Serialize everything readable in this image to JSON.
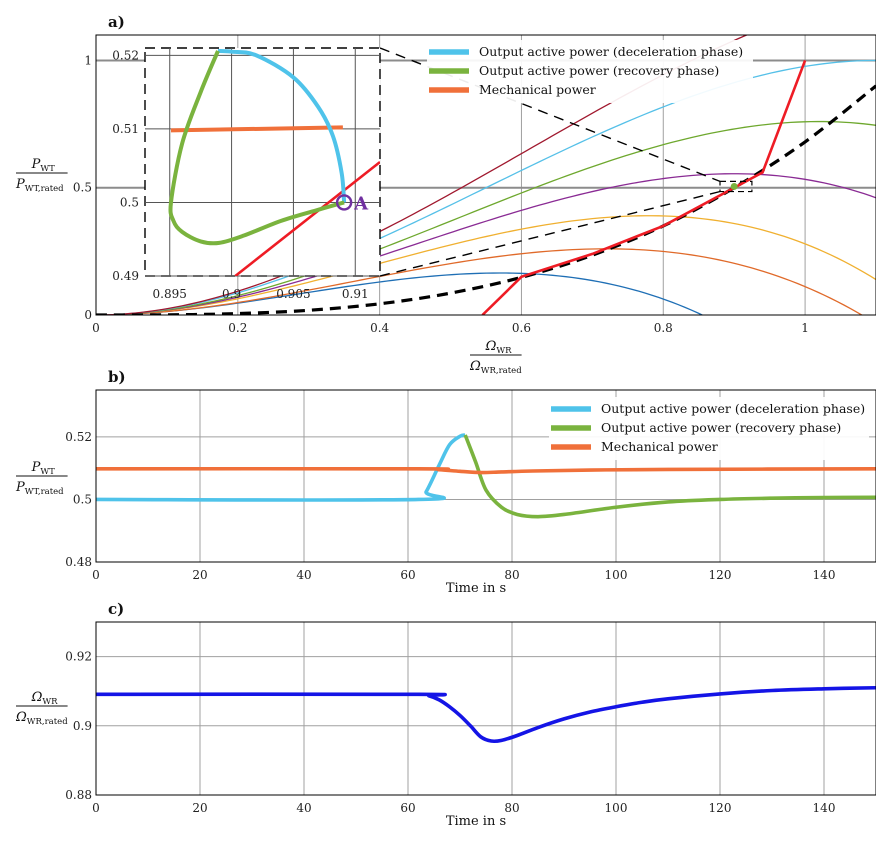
{
  "chart_data": [
    {
      "panel_label": "a)",
      "type": "line",
      "xlabel": {
        "num": "Ω",
        "num_sub": "WR",
        "den": "Ω",
        "den_sub": "WR,rated"
      },
      "ylabel": {
        "num": "P",
        "num_sub": "WT",
        "den": "P",
        "den_sub": "WT,rated"
      },
      "xlim": [
        0,
        1.1
      ],
      "ylim": [
        0,
        1.1
      ],
      "xticks": [
        0,
        0.2,
        0.4,
        0.6,
        0.8,
        1
      ],
      "xtick_labels": [
        "0",
        "0.2",
        "0.4",
        "0.6",
        "0.8",
        "1"
      ],
      "yticks": [
        0,
        0.5,
        1
      ],
      "ytick_labels": [
        "0",
        "0.5",
        "1"
      ],
      "grid": true,
      "legend_position": "top-right",
      "legend": [
        {
          "label": "Output active power (deceleration phase)",
          "color": "#4fc3ea"
        },
        {
          "label": "Output active power (recovery phase)",
          "color": "#7ab33e"
        },
        {
          "label": "Mechanical power",
          "color": "#f0703a"
        }
      ],
      "power_curve_peaks": [
        {
          "peak_x": 0.57,
          "peak_y": 0.165,
          "color": "#1f6fb5"
        },
        {
          "peak_x": 0.72,
          "peak_y": 0.26,
          "color": "#e06a2a"
        },
        {
          "peak_x": 0.78,
          "peak_y": 0.39,
          "color": "#f0b030"
        },
        {
          "peak_x": 0.9,
          "peak_y": 0.555,
          "color": "#8a2b94"
        },
        {
          "peak_x": 1.02,
          "peak_y": 0.76,
          "color": "#6ea82e"
        },
        {
          "peak_x": 1.1,
          "peak_y": 1.0,
          "color": "#55c0e8"
        },
        {
          "peak_x": 1.22,
          "peak_y": 1.3,
          "color": "#a0182e"
        }
      ],
      "mppt_curve": {
        "color": "#000000",
        "x": [
          0,
          0.1,
          0.2,
          0.3,
          0.4,
          0.5,
          0.6,
          0.7,
          0.8,
          0.9,
          1.0,
          1.1
        ],
        "y": [
          0,
          0.0007,
          0.0055,
          0.0185,
          0.044,
          0.086,
          0.148,
          0.235,
          0.35,
          0.5,
          0.68,
          0.9
        ]
      },
      "operating_limit": {
        "color": "#ee1c25",
        "x": [
          0.545,
          0.6,
          0.7,
          0.8,
          0.9,
          0.94,
          1.0
        ],
        "y": [
          0,
          0.15,
          0.24,
          0.35,
          0.5,
          0.56,
          1.0
        ]
      },
      "zoom_box": {
        "x": [
          0.88,
          0.925
        ],
        "y": [
          0.485,
          0.525
        ]
      },
      "marker": {
        "x": 0.9,
        "y": 0.505,
        "color": "#7ab33e"
      },
      "inset": {
        "xlim": [
          0.893,
          0.912
        ],
        "ylim": [
          0.49,
          0.521
        ],
        "xticks": [
          0.895,
          0.9,
          0.905,
          0.91
        ],
        "xtick_labels": [
          "0.895",
          "0.9",
          "0.905",
          "0.91"
        ],
        "yticks": [
          0.49,
          0.5,
          0.51,
          0.52
        ],
        "ytick_labels": [
          "0.49",
          "0.5",
          "0.51",
          "0.52"
        ],
        "point_label": "A",
        "point_A": {
          "x": 0.9091,
          "y": 0.5
        },
        "deceleration_curve": {
          "color": "#4fc3ea",
          "x": [
            0.9091,
            0.9089,
            0.9082,
            0.907,
            0.905,
            0.902,
            0.9,
            0.8989
          ],
          "y": [
            0.5,
            0.504,
            0.509,
            0.513,
            0.517,
            0.52,
            0.5205,
            0.5206
          ]
        },
        "recovery_curve": {
          "color": "#7ab33e",
          "x": [
            0.8989,
            0.8975,
            0.896,
            0.8951,
            0.8953,
            0.896,
            0.8975,
            0.899,
            0.901,
            0.904,
            0.907,
            0.9091
          ],
          "y": [
            0.5206,
            0.515,
            0.508,
            0.5,
            0.4975,
            0.496,
            0.4947,
            0.4945,
            0.4955,
            0.4975,
            0.499,
            0.5
          ]
        },
        "mechanical_curve": {
          "color": "#f0703a",
          "x": [
            0.8951,
            0.909
          ],
          "y": [
            0.5098,
            0.5102
          ]
        },
        "limit_curve": {
          "color": "#ee1c25",
          "x": [
            0.9003,
            0.912
          ],
          "y": [
            0.49,
            0.5055
          ]
        }
      }
    },
    {
      "panel_label": "b)",
      "type": "line",
      "xlabel": "Time in s",
      "ylabel": {
        "num": "P",
        "num_sub": "WT",
        "den": "P",
        "den_sub": "WT,rated"
      },
      "xlim": [
        0,
        150
      ],
      "ylim": [
        0.48,
        0.535
      ],
      "xticks": [
        0,
        20,
        40,
        60,
        80,
        100,
        120,
        140
      ],
      "xtick_labels": [
        "0",
        "20",
        "40",
        "60",
        "80",
        "100",
        "120",
        "140"
      ],
      "yticks": [
        0.48,
        0.5,
        0.52
      ],
      "ytick_labels": [
        "0.48",
        "0.5",
        "0.52"
      ],
      "grid": true,
      "legend_position": "top-right",
      "series": [
        {
          "name": "Output active power (deceleration phase)",
          "color": "#4fc3ea",
          "x": [
            0,
            62,
            63.5,
            66,
            68,
            70,
            71
          ],
          "y": [
            0.5,
            0.5,
            0.5025,
            0.511,
            0.5175,
            0.5202,
            0.5206
          ]
        },
        {
          "name": "Output active power (recovery phase)",
          "color": "#7ab33e",
          "x": [
            71,
            73,
            75,
            78,
            81,
            85,
            90,
            100,
            110,
            120,
            130,
            140,
            150
          ],
          "y": [
            0.5206,
            0.512,
            0.503,
            0.4975,
            0.4952,
            0.4945,
            0.4952,
            0.4975,
            0.4992,
            0.5,
            0.5004,
            0.5006,
            0.5007
          ]
        },
        {
          "name": "Mechanical power",
          "color": "#f0703a",
          "x": [
            0,
            62,
            66,
            70,
            74,
            78,
            84,
            95,
            110,
            150
          ],
          "y": [
            0.5098,
            0.5098,
            0.5095,
            0.509,
            0.5086,
            0.5088,
            0.5091,
            0.5094,
            0.5096,
            0.5098
          ]
        }
      ]
    },
    {
      "panel_label": "c)",
      "type": "line",
      "xlabel": "Time in s",
      "ylabel": {
        "num": "Ω",
        "num_sub": "WR",
        "den": "Ω",
        "den_sub": "WR,rated"
      },
      "xlim": [
        0,
        150
      ],
      "ylim": [
        0.88,
        0.93
      ],
      "xticks": [
        0,
        20,
        40,
        60,
        80,
        100,
        120,
        140
      ],
      "xtick_labels": [
        "0",
        "20",
        "40",
        "60",
        "80",
        "100",
        "120",
        "140"
      ],
      "yticks": [
        0.88,
        0.9,
        0.92
      ],
      "ytick_labels": [
        "0.88",
        "0.9",
        "0.92"
      ],
      "grid": true,
      "series": [
        {
          "color": "#1414e6",
          "x": [
            0,
            62,
            64,
            66,
            68,
            70,
            72,
            74,
            76,
            78,
            81,
            85,
            90,
            95,
            100,
            105,
            110,
            120,
            130,
            140,
            150
          ],
          "y": [
            0.9091,
            0.9091,
            0.9087,
            0.9075,
            0.9055,
            0.903,
            0.9,
            0.8968,
            0.8956,
            0.8958,
            0.8972,
            0.8995,
            0.902,
            0.904,
            0.9055,
            0.9068,
            0.9078,
            0.9092,
            0.9102,
            0.9107,
            0.911
          ]
        }
      ]
    }
  ]
}
